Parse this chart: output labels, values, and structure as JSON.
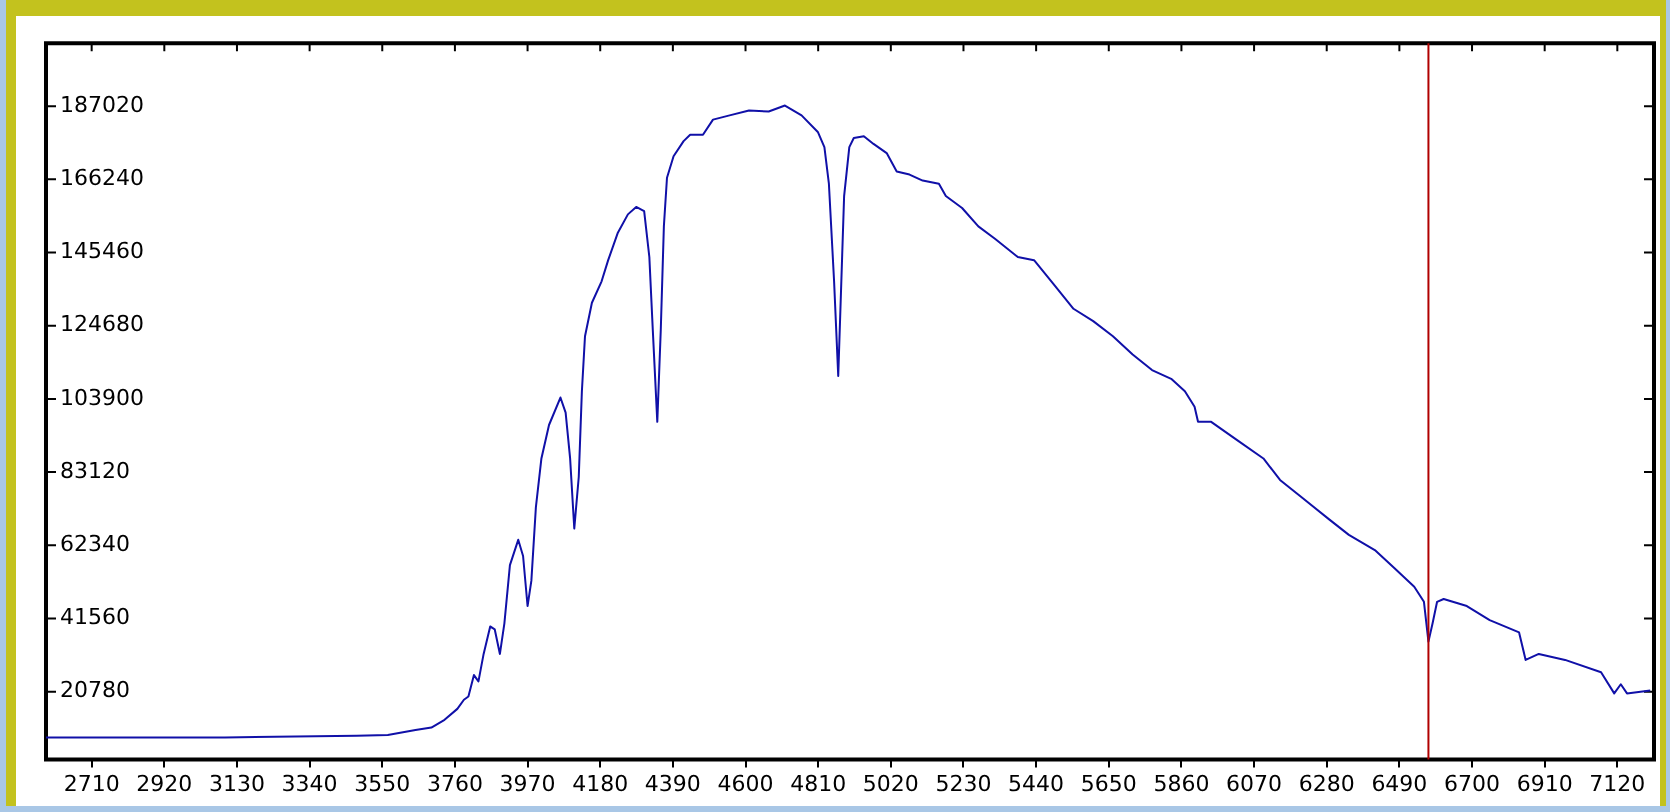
{
  "chart_data": {
    "type": "line",
    "color": "#1010a8",
    "line_style": "solid",
    "x": [
      2578,
      3095,
      3476,
      3566,
      3646,
      3692,
      3730,
      3767,
      3786,
      3799,
      3815,
      3828,
      3843,
      3862,
      3875,
      3890,
      3903,
      3919,
      3943,
      3957,
      3970,
      3981,
      3994,
      4010,
      4032,
      4065,
      4080,
      4093,
      4105,
      4118,
      4127,
      4133,
      4136,
      4156,
      4184,
      4203,
      4231,
      4260,
      4284,
      4307,
      4322,
      4332,
      4345,
      4355,
      4364,
      4373,
      4392,
      4421,
      4440,
      4477,
      4506,
      4554,
      4610,
      4667,
      4714,
      4762,
      4809,
      4828,
      4841,
      4856,
      4868,
      4885,
      4900,
      4913,
      4942,
      4970,
      5008,
      5037,
      5074,
      5112,
      5159,
      5179,
      5226,
      5273,
      5321,
      5387,
      5434,
      5491,
      5548,
      5605,
      5662,
      5719,
      5775,
      5832,
      5870,
      5898,
      5908,
      5946,
      6021,
      6097,
      6145,
      6211,
      6287,
      6344,
      6419,
      6476,
      6533,
      6561,
      6574,
      6586,
      6599,
      6618,
      6685,
      6751,
      6836,
      6855,
      6893,
      6969,
      7073,
      7111,
      7130,
      7148,
      7215
    ],
    "values": [
      7800,
      7800,
      8300,
      8500,
      9900,
      10600,
      12800,
      15900,
      18500,
      19400,
      25500,
      23700,
      31500,
      39300,
      38500,
      31500,
      40200,
      56700,
      63900,
      59300,
      45100,
      52300,
      73100,
      87000,
      96500,
      104300,
      100000,
      87000,
      67100,
      81800,
      106100,
      116500,
      121700,
      131200,
      137300,
      143300,
      151100,
      156300,
      158400,
      157200,
      144200,
      123400,
      97400,
      123400,
      152900,
      166700,
      172800,
      177100,
      178900,
      178900,
      183200,
      184400,
      185800,
      185500,
      187200,
      184400,
      179700,
      175400,
      165000,
      137300,
      110400,
      161500,
      175400,
      178000,
      178500,
      176300,
      173700,
      168500,
      167600,
      165900,
      165000,
      161500,
      158100,
      152900,
      149400,
      144200,
      143300,
      136400,
      129500,
      126000,
      121700,
      116500,
      112100,
      109500,
      106100,
      101700,
      97400,
      97400,
      92200,
      87000,
      80900,
      75700,
      69700,
      65300,
      61000,
      55800,
      50600,
      46300,
      35000,
      40200,
      46300,
      47100,
      45100,
      41100,
      37600,
      29800,
      31500,
      29800,
      26300,
      20300,
      22900,
      20300,
      21100
    ],
    "xlim": [
      2578,
      7226
    ],
    "xticks": [
      2710,
      2920,
      3130,
      3340,
      3550,
      3760,
      3970,
      4180,
      4390,
      4600,
      4810,
      5020,
      5230,
      5440,
      5650,
      5860,
      6070,
      6280,
      6490,
      6700,
      6910,
      7120
    ],
    "ylim": [
      1500,
      204900
    ],
    "yticks": [
      20780,
      41560,
      62340,
      83120,
      103900,
      124680,
      145460,
      166240,
      187020
    ],
    "ref_lines": [
      {
        "axis": "x",
        "value": 6574,
        "color": "#b00000"
      }
    ]
  }
}
